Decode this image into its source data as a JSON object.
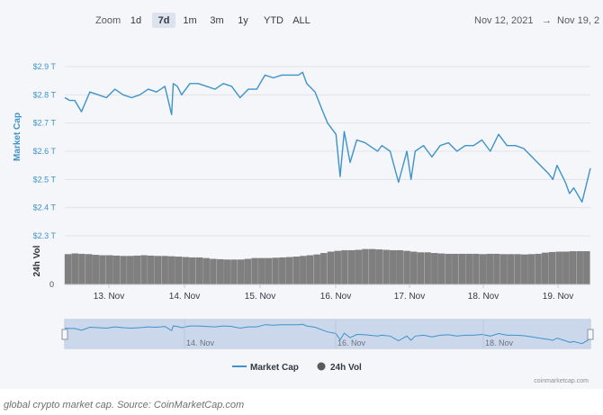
{
  "toolbar": {
    "zoom_label": "Zoom",
    "zoom_options": [
      "1d",
      "7d",
      "1m",
      "3m",
      "1y",
      "YTD",
      "ALL"
    ],
    "zoom_selected": "7d",
    "date_from": "Nov 12, 2021",
    "date_arrow": "→",
    "date_to": "Nov 19, 2"
  },
  "colors": {
    "line": "#3f93c8",
    "volume": "#7f7f7f",
    "navigator_fill": "#c6d4ea",
    "panel": "#f4f6f9"
  },
  "caption": "global crypto market cap. Source: CoinMarketCap.com",
  "credit": "coinmarketcap.com",
  "chart_data": {
    "type": "line",
    "title": "",
    "ylabel": "Market Cap",
    "ylabel_volume": "24h Vol",
    "ylim": [
      2.3,
      2.9
    ],
    "y_ticks": [
      "$2.3 T",
      "$2.4 T",
      "$2.5 T",
      "$2.6 T",
      "$2.7 T",
      "$2.8 T",
      "$2.9 T"
    ],
    "volume_ticks": [
      "0"
    ],
    "x_ticks": [
      "13. Nov",
      "14. Nov",
      "15. Nov",
      "16. Nov",
      "17. Nov",
      "18. Nov",
      "19. Nov"
    ],
    "navigator_ticks": [
      "14. Nov",
      "16. Nov",
      "18. Nov"
    ],
    "legend": [
      {
        "name": "Market Cap",
        "symbol": "line"
      },
      {
        "name": "24h Vol",
        "symbol": "circle"
      }
    ],
    "legend_position": "bottom-center",
    "x_days": [
      0,
      0.06,
      0.12,
      0.2,
      0.3,
      0.4,
      0.5,
      0.6,
      0.7,
      0.8,
      0.9,
      1.0,
      1.1,
      1.2,
      1.28,
      1.3,
      1.35,
      1.4,
      1.5,
      1.6,
      1.7,
      1.8,
      1.9,
      2.0,
      2.1,
      2.2,
      2.3,
      2.4,
      2.5,
      2.6,
      2.7,
      2.8,
      2.85,
      2.9,
      3.0,
      3.08,
      3.15,
      3.25,
      3.3,
      3.35,
      3.42,
      3.5,
      3.6,
      3.7,
      3.75,
      3.8,
      3.9,
      4.0,
      4.1,
      4.15,
      4.2,
      4.3,
      4.35,
      4.4,
      4.5,
      4.6,
      4.7,
      4.8,
      4.9,
      5.0,
      5.1,
      5.2,
      5.3,
      5.4,
      5.5,
      5.6,
      5.7,
      5.8,
      5.85,
      5.9,
      6.0,
      6.05,
      6.1,
      6.2,
      6.25,
      6.3
    ],
    "series": [
      {
        "name": "Market Cap",
        "values": [
          2.79,
          2.78,
          2.78,
          2.74,
          2.81,
          2.8,
          2.79,
          2.82,
          2.8,
          2.79,
          2.8,
          2.82,
          2.81,
          2.83,
          2.73,
          2.84,
          2.83,
          2.8,
          2.84,
          2.84,
          2.83,
          2.82,
          2.84,
          2.83,
          2.79,
          2.82,
          2.82,
          2.87,
          2.86,
          2.87,
          2.87,
          2.87,
          2.88,
          2.84,
          2.81,
          2.75,
          2.7,
          2.66,
          2.51,
          2.67,
          2.56,
          2.64,
          2.63,
          2.61,
          2.6,
          2.62,
          2.6,
          2.49,
          2.6,
          2.5,
          2.6,
          2.62,
          2.6,
          2.58,
          2.62,
          2.63,
          2.6,
          2.62,
          2.62,
          2.64,
          2.6,
          2.66,
          2.62,
          2.62,
          2.61,
          2.58,
          2.55,
          2.52,
          2.5,
          2.55,
          2.49,
          2.45,
          2.47,
          2.42,
          2.48,
          2.54
        ]
      },
      {
        "name": "24h Vol",
        "relative_values": [
          0.79,
          0.81,
          0.8,
          0.79,
          0.77,
          0.76,
          0.76,
          0.75,
          0.74,
          0.74,
          0.75,
          0.76,
          0.75,
          0.74,
          0.74,
          0.73,
          0.72,
          0.71,
          0.7,
          0.7,
          0.68,
          0.66,
          0.65,
          0.64,
          0.64,
          0.64,
          0.66,
          0.68,
          0.68,
          0.68,
          0.69,
          0.7,
          0.71,
          0.72,
          0.74,
          0.76,
          0.78,
          0.82,
          0.86,
          0.88,
          0.9,
          0.9,
          0.91,
          0.93,
          0.93,
          0.92,
          0.91,
          0.9,
          0.9,
          0.88,
          0.86,
          0.84,
          0.84,
          0.82,
          0.81,
          0.8,
          0.8,
          0.8,
          0.8,
          0.8,
          0.79,
          0.8,
          0.8,
          0.79,
          0.79,
          0.79,
          0.78,
          0.79,
          0.8,
          0.83,
          0.85,
          0.86,
          0.86,
          0.87,
          0.87,
          0.87
        ]
      }
    ]
  }
}
